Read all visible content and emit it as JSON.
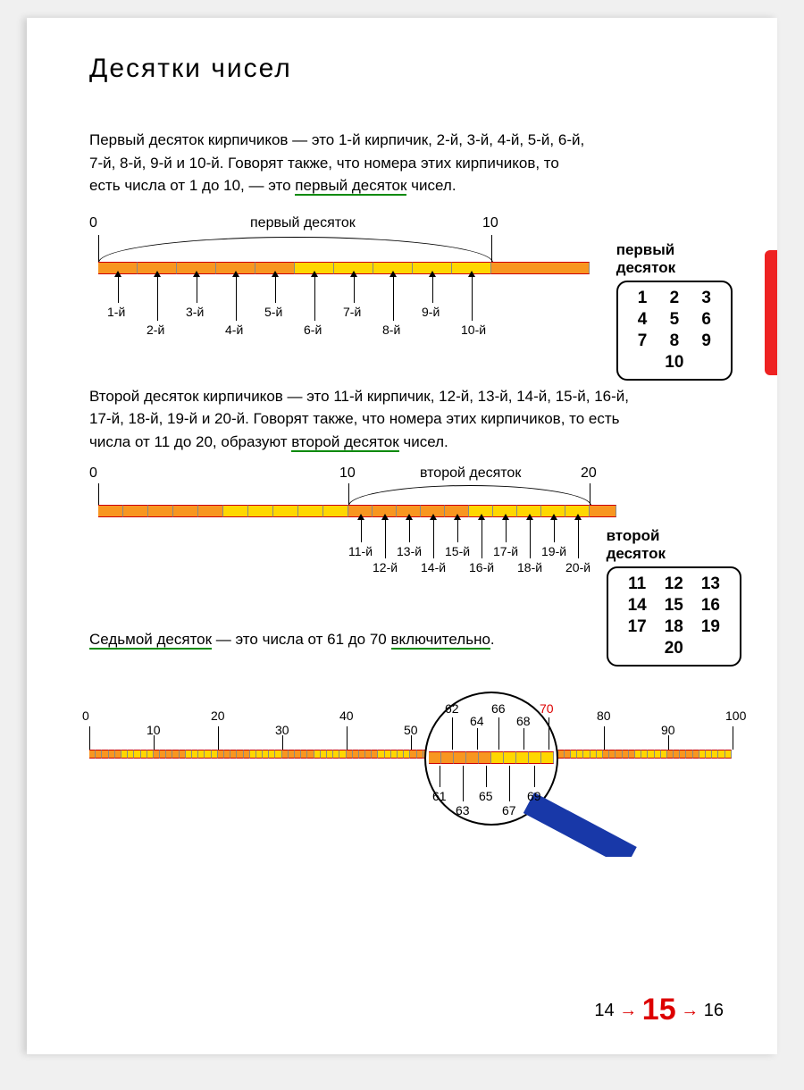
{
  "title": "Десятки чисел",
  "para1_a": "Первый десяток кирпичиков — это 1-й кирпичик, 2-й, 3-й, 4-й, 5-й, 6-й, 7-й, 8-й, 9-й и 10-й. Говорят также, что номера этих кирпичиков, то есть числа от 1 до 10, — это ",
  "para1_u": "первый десяток",
  "para1_b": " чисел.",
  "box1": {
    "title": "первый\nдесяток",
    "rows": [
      [
        "1",
        "2",
        "3"
      ],
      [
        "4",
        "5",
        "6"
      ],
      [
        "7",
        "8",
        "9"
      ],
      [
        "",
        "10",
        ""
      ]
    ]
  },
  "diag1": {
    "label_arc": "первый десяток",
    "scale0": "0",
    "scale10": "10",
    "arrows": [
      "1-й",
      "2-й",
      "3-й",
      "4-й",
      "5-й",
      "6-й",
      "7-й",
      "8-й",
      "9-й",
      "10-й"
    ]
  },
  "para2_a": "Второй десяток кирпичиков — это 11-й кирпичик, 12-й, 13-й, 14-й, 15-й, 16-й, 17-й, 18-й, 19-й и 20-й. Говорят также, что номера этих кирпичиков, то есть числа от 11 до 20, образуют ",
  "para2_u": "второй десяток",
  "para2_b": " чисел.",
  "box2": {
    "title": "второй\nдесяток",
    "rows": [
      [
        "11",
        "12",
        "13"
      ],
      [
        "14",
        "15",
        "16"
      ],
      [
        "17",
        "18",
        "19"
      ],
      [
        "",
        "20",
        ""
      ]
    ]
  },
  "diag2": {
    "label_arc": "второй десяток",
    "scale0": "0",
    "scale10": "10",
    "scale20": "20",
    "arrows": [
      "11-й",
      "12-й",
      "13-й",
      "14-й",
      "15-й",
      "16-й",
      "17-й",
      "18-й",
      "19-й",
      "20-й"
    ]
  },
  "para3_a": "Седьмой десяток",
  "para3_b": " — это числа от 61 до 70 ",
  "para3_c": "включительно",
  "para3_d": ".",
  "diag3": {
    "ticks": [
      "0",
      "10",
      "20",
      "30",
      "40",
      "50",
      "80",
      "90",
      "100"
    ],
    "mag_top": [
      "62",
      "64",
      "66",
      "68"
    ],
    "mag_top2": "70",
    "mag_bot": [
      "61",
      "63",
      "65",
      "67",
      "69"
    ]
  },
  "colors": {
    "orange": "#f89620",
    "yellow": "#ffd700",
    "red": "#e22",
    "green": "#0a8a0a",
    "blue": "#1838a8"
  },
  "footer": {
    "prev": "14",
    "cur": "15",
    "next": "16"
  }
}
